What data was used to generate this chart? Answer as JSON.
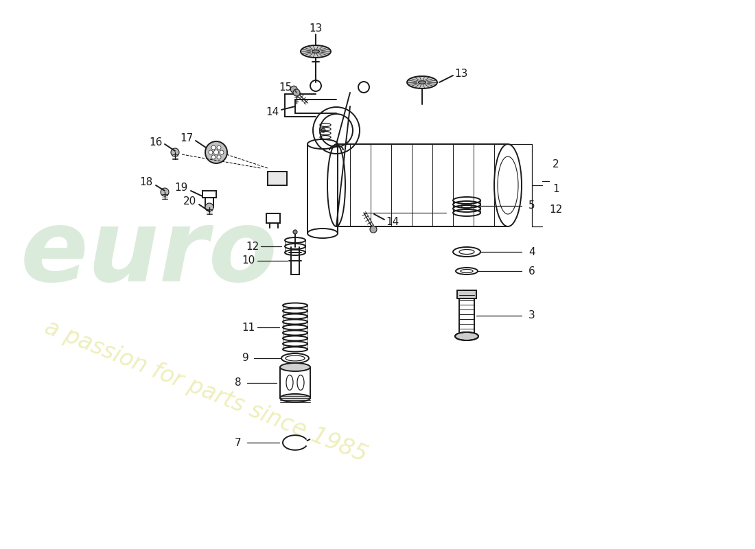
{
  "bg_color": "#ffffff",
  "line_color": "#1a1a1a",
  "watermark_green": "#b8d8b8",
  "watermark_yellow": "#e8e8a0",
  "fig_width": 11.0,
  "fig_height": 8.0,
  "dpi": 100
}
